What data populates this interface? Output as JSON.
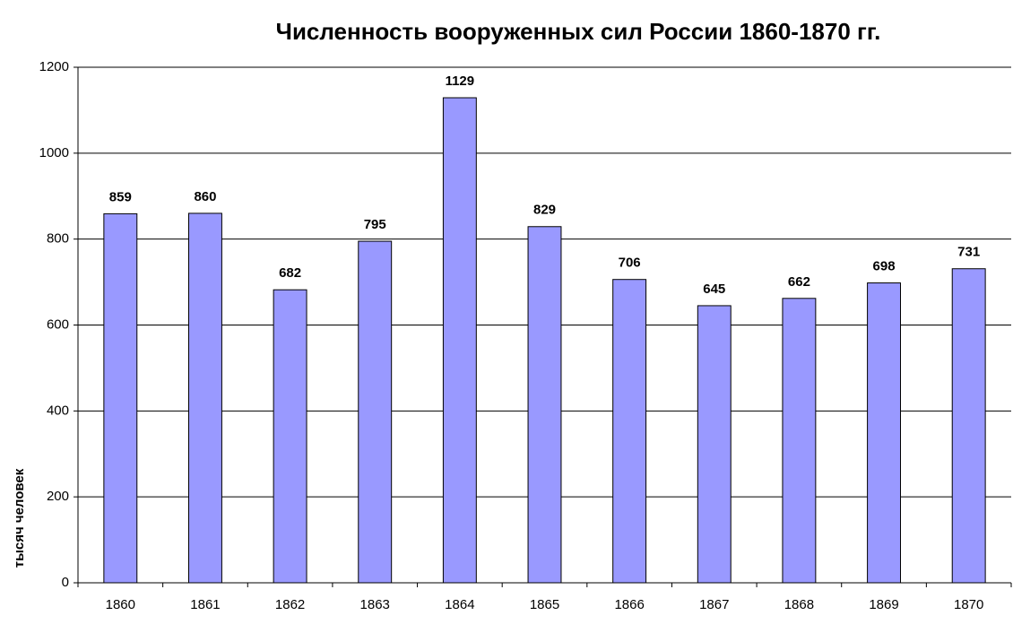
{
  "chart_data": {
    "type": "bar",
    "title": "Численность вооруженных сил России 1860-1870 гг.",
    "y_label": "тысяч человек",
    "categories": [
      "1860",
      "1861",
      "1862",
      "1863",
      "1864",
      "1865",
      "1866",
      "1867",
      "1868",
      "1869",
      "1870"
    ],
    "values": [
      859,
      860,
      682,
      795,
      1129,
      829,
      706,
      645,
      662,
      698,
      731
    ],
    "color": "#9999ff",
    "ylim": [
      0,
      1200
    ],
    "yticks": [
      0,
      200,
      400,
      600,
      800,
      1000,
      1200
    ],
    "grid": true
  }
}
